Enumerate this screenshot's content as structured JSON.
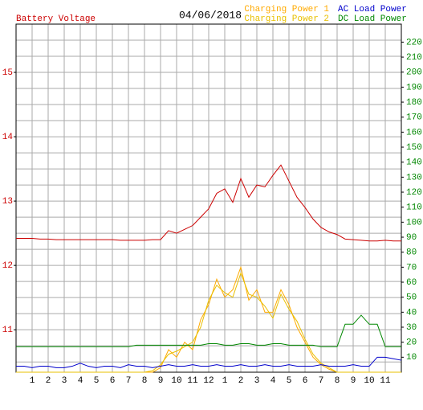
{
  "chart_data": {
    "type": "line",
    "subtitle": "04/06/2018",
    "x": [
      0,
      0.5,
      1,
      1.5,
      2,
      2.5,
      3,
      3.5,
      4,
      4.5,
      5,
      5.5,
      6,
      6.5,
      7,
      7.5,
      8,
      8.5,
      9,
      9.5,
      10,
      10.5,
      11,
      11.5,
      12,
      12.5,
      13,
      13.5,
      14,
      14.5,
      15,
      15.5,
      16,
      16.5,
      17,
      17.5,
      18,
      18.5,
      19,
      19.5,
      20,
      20.5,
      21,
      21.5,
      22,
      22.5,
      23,
      23.5,
      24
    ],
    "xlim": [
      0,
      24
    ],
    "xticks": [
      1,
      2,
      3,
      4,
      5,
      6,
      7,
      8,
      9,
      10,
      11,
      12,
      {
        "value": 13,
        "label": "1"
      },
      {
        "value": 14,
        "label": "2"
      },
      {
        "value": 15,
        "label": "3"
      },
      {
        "value": 16,
        "label": "4"
      },
      {
        "value": 17,
        "label": "5"
      },
      {
        "value": 18,
        "label": "6"
      },
      {
        "value": 19,
        "label": "7"
      },
      {
        "value": 20,
        "label": "8"
      },
      {
        "value": 21,
        "label": "9"
      },
      {
        "value": 22,
        "label": "10"
      },
      {
        "value": 23,
        "label": "11"
      }
    ],
    "ylim": [
      10.34,
      15.75
    ],
    "yticks": [
      11,
      12,
      13,
      14,
      15
    ],
    "y_grid_step": 0.25,
    "y2lim": [
      0,
      232
    ],
    "y2ticks": [
      10,
      20,
      30,
      40,
      50,
      60,
      70,
      80,
      90,
      100,
      110,
      120,
      130,
      140,
      150,
      160,
      170,
      180,
      190,
      200,
      210,
      220
    ],
    "grid": true,
    "series": [
      {
        "name": "Battery Voltage",
        "color": "#cc0000",
        "axis": "y",
        "values": [
          12.42,
          12.42,
          12.42,
          12.41,
          12.41,
          12.4,
          12.4,
          12.4,
          12.4,
          12.4,
          12.4,
          12.4,
          12.4,
          12.39,
          12.39,
          12.39,
          12.39,
          12.4,
          12.4,
          12.54,
          12.5,
          12.56,
          12.62,
          12.75,
          12.88,
          13.12,
          13.19,
          12.98,
          13.35,
          13.06,
          13.25,
          13.22,
          13.4,
          13.56,
          13.31,
          13.06,
          12.9,
          12.72,
          12.59,
          12.52,
          12.48,
          12.41,
          12.4,
          12.39,
          12.38,
          12.38,
          12.39,
          12.38,
          12.38
        ]
      },
      {
        "name": "Charging Power 1",
        "color": "#ffaa00",
        "axis": "y2",
        "values": [
          0,
          0,
          0,
          0,
          0,
          0,
          0,
          0,
          0,
          0,
          0,
          0,
          0,
          0,
          0,
          0,
          0,
          0,
          3,
          15,
          10,
          20,
          15,
          35,
          45,
          62,
          50,
          55,
          70,
          48,
          55,
          40,
          40,
          55,
          45,
          30,
          20,
          10,
          5,
          2,
          0,
          0,
          0,
          0,
          0,
          0,
          0,
          0,
          0
        ]
      },
      {
        "name": "Charging Power 2",
        "color": "#e8c000",
        "axis": "y2",
        "values": [
          0,
          0,
          0,
          0,
          0,
          0,
          0,
          0,
          0,
          0,
          0,
          0,
          0,
          0,
          0,
          0,
          0,
          1,
          5,
          12,
          14,
          17,
          20,
          30,
          48,
          58,
          53,
          50,
          66,
          52,
          50,
          44,
          36,
          52,
          42,
          34,
          22,
          12,
          6,
          3,
          0,
          0,
          0,
          0,
          0,
          0,
          0,
          0,
          0
        ]
      },
      {
        "name": "AC Load Power",
        "color": "#0000cc",
        "axis": "y2",
        "values": [
          4,
          4,
          3,
          4,
          4,
          3,
          3,
          4,
          6,
          4,
          3,
          4,
          4,
          3,
          5,
          4,
          4,
          3,
          4,
          5,
          4,
          4,
          5,
          4,
          4,
          5,
          4,
          4,
          5,
          4,
          4,
          5,
          4,
          4,
          5,
          4,
          4,
          4,
          5,
          4,
          4,
          4,
          5,
          4,
          4,
          10,
          10,
          9,
          8
        ]
      },
      {
        "name": "DC Load Power",
        "color": "#008800",
        "axis": "y2",
        "values": [
          17,
          17,
          17,
          17,
          17,
          17,
          17,
          17,
          17,
          17,
          17,
          17,
          17,
          17,
          17,
          18,
          18,
          18,
          18,
          18,
          18,
          18,
          18,
          18,
          19,
          19,
          18,
          18,
          19,
          19,
          18,
          18,
          19,
          19,
          18,
          18,
          18,
          18,
          17,
          17,
          17,
          32,
          32,
          38,
          32,
          32,
          17,
          17,
          17
        ]
      }
    ]
  }
}
